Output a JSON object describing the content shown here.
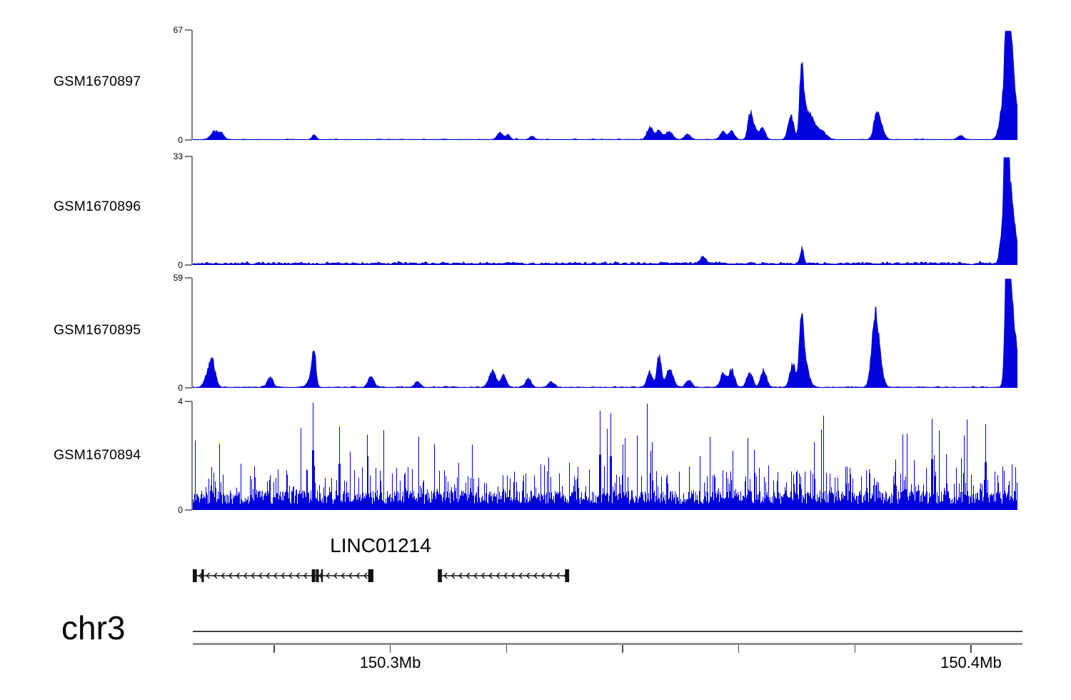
{
  "figure": {
    "background": "#ffffff",
    "signal_color": "#0202DE",
    "signal_stroke": "#0000BE",
    "axis_gray": "#7d7d7d",
    "gene_color": "#111111",
    "text_color": "#000000"
  },
  "chart_data": {
    "type": "area",
    "description_labels": {
      "gene_title": "LINC01214",
      "chromosome": "chr3"
    },
    "genome_axis": {
      "chromosome": "chr3",
      "x_range_mb": [
        150.266,
        150.408
      ],
      "tick_interval_mb": 0.02,
      "ticks_mb": [
        150.28,
        150.3,
        150.32,
        150.34,
        150.36,
        150.38,
        150.4
      ],
      "tick_labels": [
        {
          "mb": 150.3,
          "text": "150.3Mb"
        },
        {
          "mb": 150.4,
          "text": "150.4Mb"
        }
      ]
    },
    "tracks": [
      {
        "name": "GSM1670897",
        "ylim": [
          0,
          67
        ],
        "yaxis_labels": {
          "top": "67",
          "bottom": "0"
        },
        "style": "coverage",
        "noise": {
          "base": 0.1,
          "rand": 0.5,
          "spike_prob": 0.06,
          "spike": 1.2,
          "smooth": 2
        },
        "peaks": [
          [
            150.2697,
            5,
            5
          ],
          [
            150.2709,
            3.5,
            4
          ],
          [
            150.2869,
            3,
            3
          ],
          [
            150.3189,
            4.5,
            4
          ],
          [
            150.3203,
            3,
            3
          ],
          [
            150.3244,
            2,
            3
          ],
          [
            150.3447,
            7.5,
            4
          ],
          [
            150.3462,
            6,
            4
          ],
          [
            150.348,
            5,
            5
          ],
          [
            150.3512,
            3.5,
            4
          ],
          [
            150.3573,
            4.5,
            4
          ],
          [
            150.3588,
            5,
            4
          ],
          [
            150.3619,
            13.5,
            3
          ],
          [
            150.3626,
            8,
            4
          ],
          [
            150.3641,
            7,
            4
          ],
          [
            150.369,
            14,
            4
          ],
          [
            150.3708,
            40,
            2.6
          ],
          [
            150.3714,
            14,
            4
          ],
          [
            150.3725,
            12,
            6
          ],
          [
            150.3742,
            5,
            7
          ],
          [
            150.3837,
            12,
            4
          ],
          [
            150.3844,
            8,
            5
          ],
          [
            150.3982,
            2.5,
            4
          ],
          [
            150.4056,
            22,
            5
          ],
          [
            150.4062,
            65,
            2.2
          ],
          [
            150.4065,
            38,
            4
          ],
          [
            150.407,
            26,
            5
          ],
          [
            150.4076,
            12,
            7
          ]
        ]
      },
      {
        "name": "GSM1670896",
        "ylim": [
          0,
          33
        ],
        "yaxis_labels": {
          "top": "33",
          "bottom": "0"
        },
        "style": "coverage",
        "noise": {
          "base": 0.15,
          "rand": 0.5,
          "spike_prob": 0.3,
          "spike": 0.9,
          "smooth": 1
        },
        "peaks": [
          [
            150.3539,
            2.2,
            4
          ],
          [
            150.3709,
            4.8,
            2.5
          ],
          [
            150.4053,
            8,
            3
          ],
          [
            150.4059,
            31,
            2.2
          ],
          [
            150.4064,
            21,
            3.5
          ],
          [
            150.407,
            11,
            4.5
          ],
          [
            150.4076,
            5,
            6
          ]
        ]
      },
      {
        "name": "GSM1670895",
        "ylim": [
          0,
          59
        ],
        "yaxis_labels": {
          "top": "59",
          "bottom": "0"
        },
        "style": "coverage",
        "noise": {
          "base": 0.12,
          "rand": 0.55,
          "spike_prob": 0.07,
          "spike": 1.4,
          "smooth": 2
        },
        "peaks": [
          [
            150.2687,
            7,
            5
          ],
          [
            150.2694,
            11.5,
            4
          ],
          [
            150.2793,
            5.4,
            4
          ],
          [
            150.2863,
            5.7,
            4
          ],
          [
            150.2869,
            17.6,
            2.6
          ],
          [
            150.2967,
            6,
            4
          ],
          [
            150.3047,
            3,
            4
          ],
          [
            150.3176,
            8.4,
            5
          ],
          [
            150.3195,
            6,
            4
          ],
          [
            150.3238,
            4.6,
            4
          ],
          [
            150.3277,
            3,
            4
          ],
          [
            150.3447,
            7.7,
            4
          ],
          [
            150.3463,
            16.5,
            3
          ],
          [
            150.3481,
            9.2,
            5
          ],
          [
            150.3514,
            4.2,
            4
          ],
          [
            150.3573,
            7,
            4
          ],
          [
            150.3588,
            9.2,
            4
          ],
          [
            150.3619,
            8.4,
            4
          ],
          [
            150.3643,
            9.2,
            4
          ],
          [
            150.3693,
            12.6,
            4
          ],
          [
            150.3708,
            33.7,
            3
          ],
          [
            150.3715,
            11.5,
            5
          ],
          [
            150.3834,
            30,
            4.5
          ],
          [
            150.3841,
            15,
            5
          ],
          [
            150.4062,
            57,
            2.5
          ],
          [
            150.4066,
            42,
            4
          ],
          [
            150.4074,
            27,
            6
          ]
        ]
      },
      {
        "name": "GSM1670894",
        "ylim": [
          0,
          4
        ],
        "yaxis_labels": {
          "top": "4",
          "bottom": "0"
        },
        "style": "comb",
        "noise": {
          "base": 0.22,
          "rand": 0.5,
          "spike_prob": 0.3,
          "spike": 1.05,
          "rare_prob": 0.05,
          "rare_base": 0.9,
          "rare": 1.6
        },
        "peaks": [
          [
            150.2867,
            4,
            1.5
          ],
          [
            150.2912,
            3.1,
            1.5
          ],
          [
            150.3361,
            3.7,
            1.5
          ],
          [
            150.3379,
            3.6,
            1.5
          ],
          [
            150.3932,
            3.4,
            1.5
          ],
          [
            150.4025,
            3.2,
            1.5
          ]
        ]
      }
    ],
    "gene_track": {
      "label": "LINC01214",
      "strand": "-",
      "transcripts": [
        {
          "start_mb": 150.266,
          "end_mb": 150.2971,
          "exons_mb": [
            [
              150.266,
              150.2667
            ],
            [
              150.2675,
              150.2679
            ],
            [
              150.2865,
              150.2871
            ],
            [
              150.2872,
              150.2877
            ],
            [
              150.2881,
              150.2884
            ],
            [
              150.2962,
              150.2971
            ]
          ]
        },
        {
          "start_mb": 150.3082,
          "end_mb": 150.3308,
          "exons_mb": [
            [
              150.3082,
              150.3089
            ],
            [
              150.3301,
              150.3308
            ]
          ]
        }
      ]
    }
  }
}
